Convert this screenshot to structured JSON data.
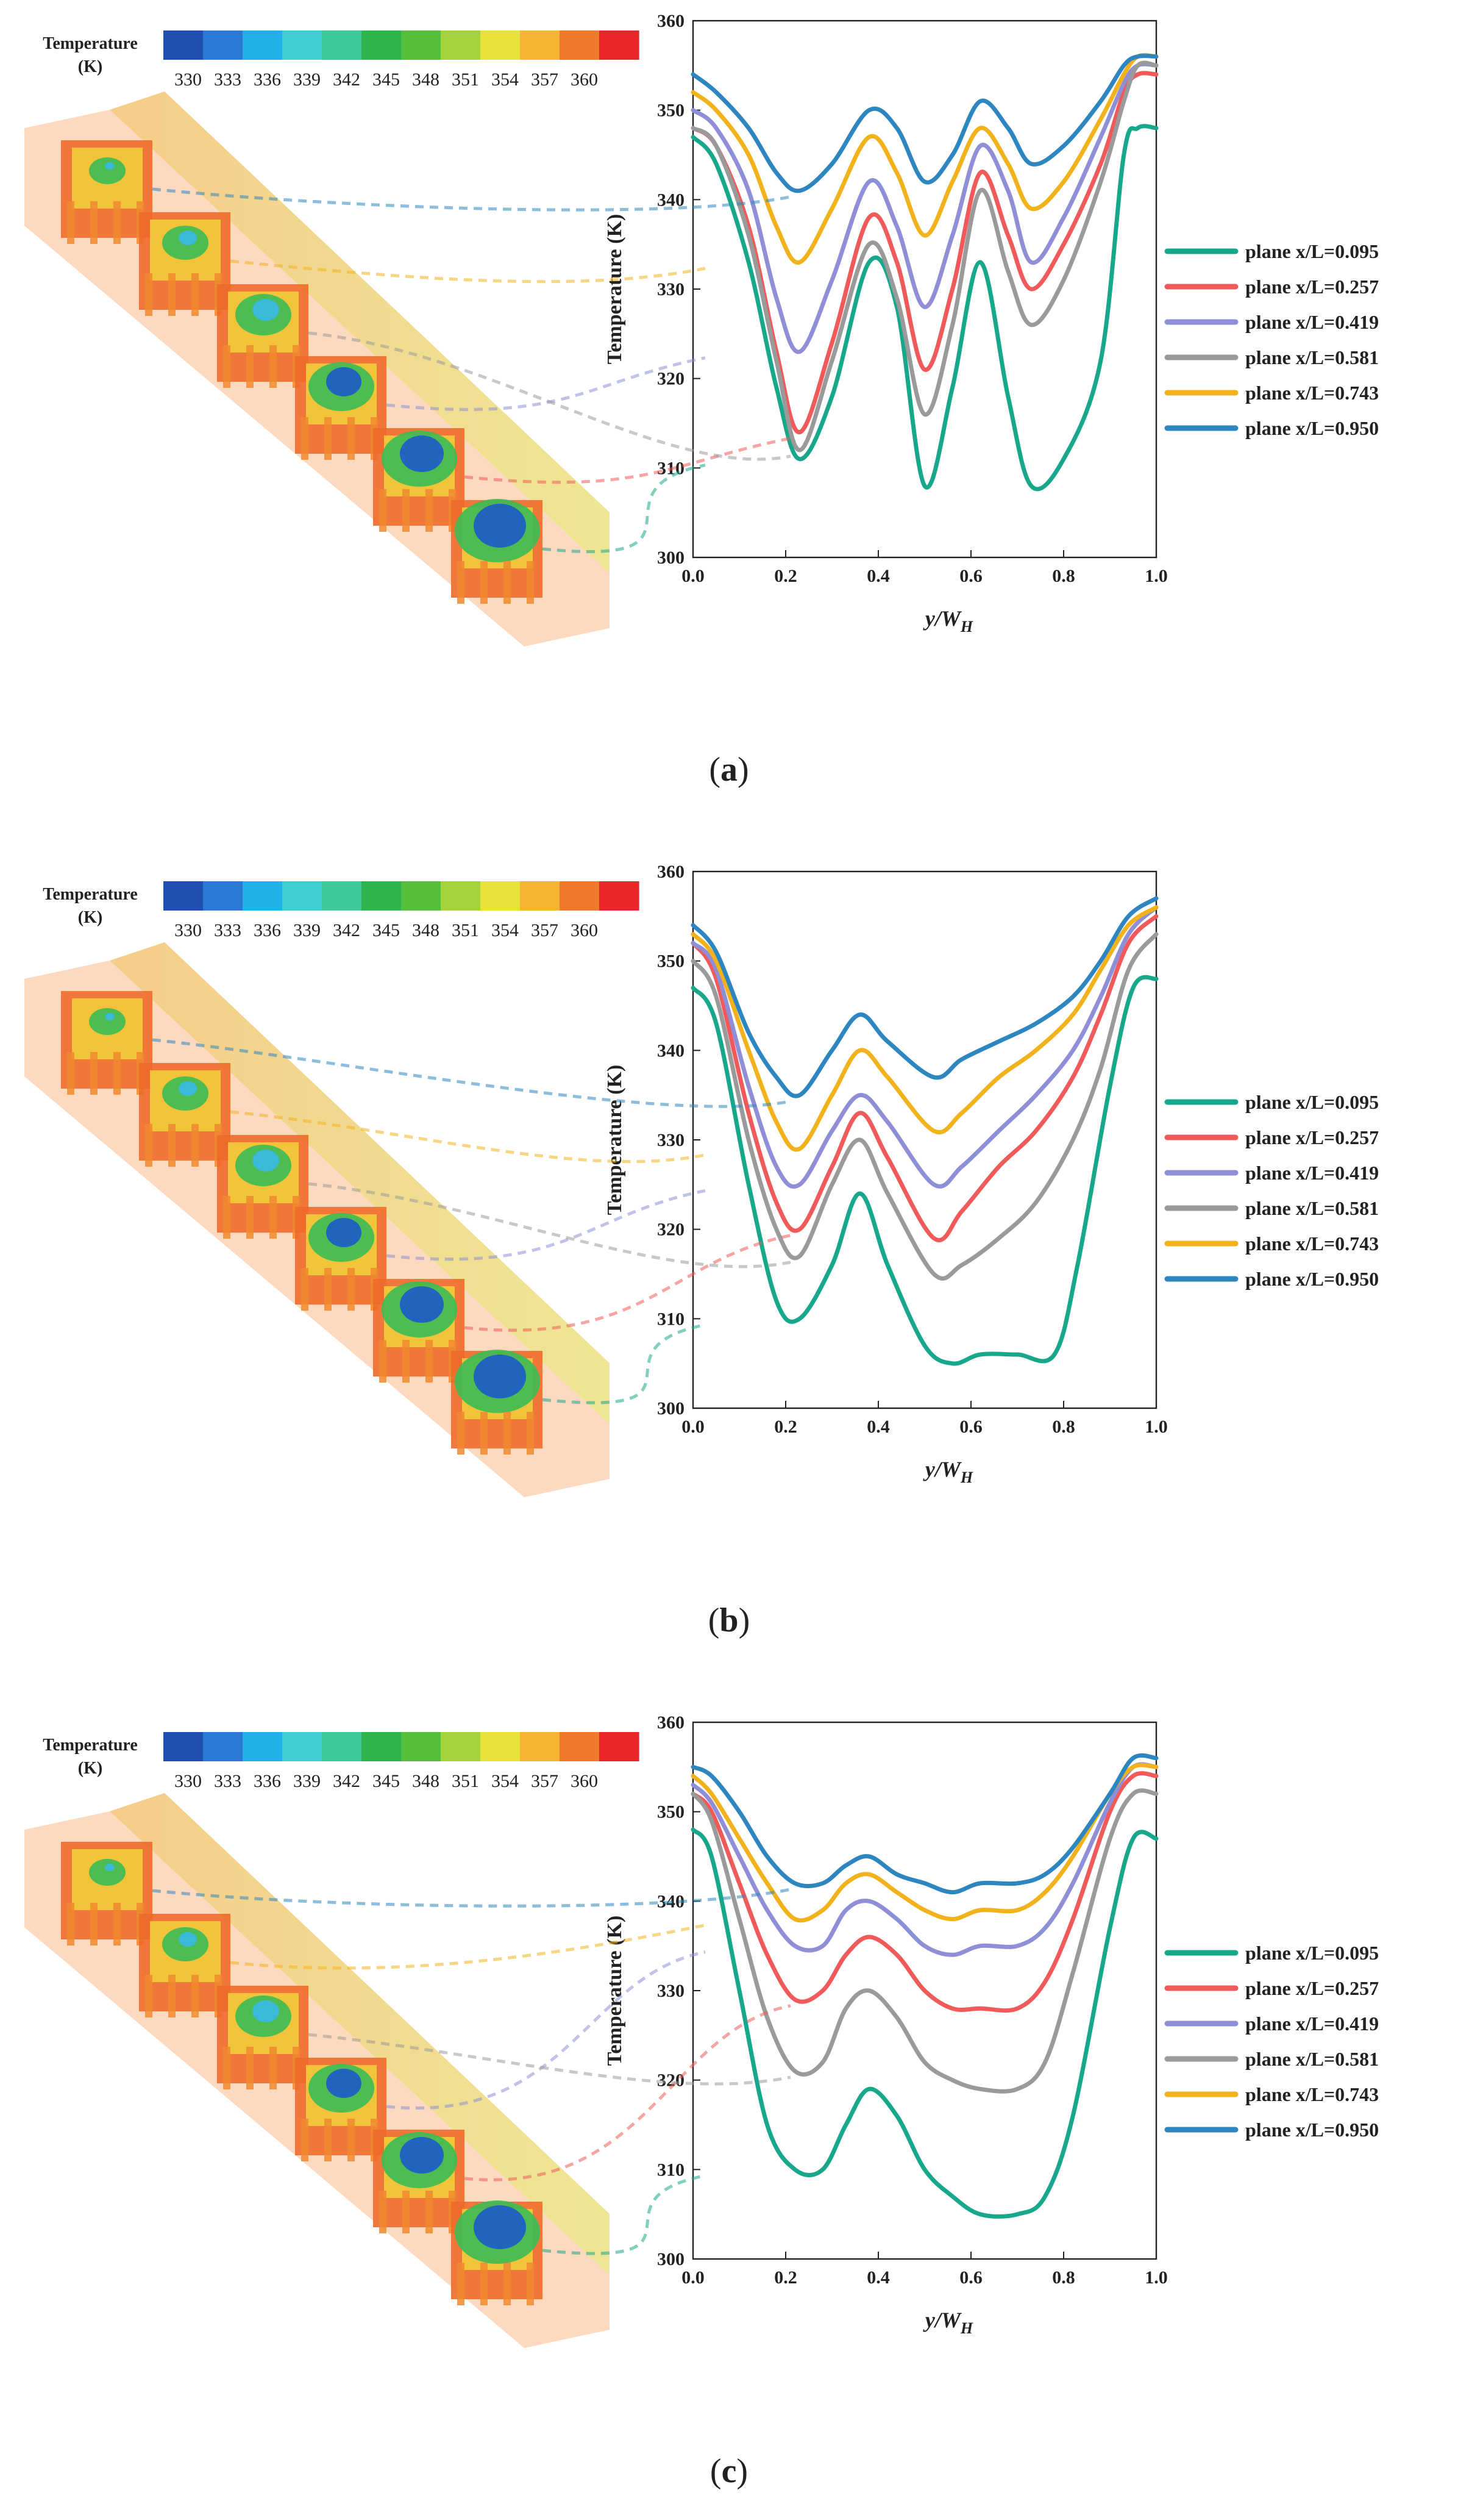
{
  "figure": {
    "panels": [
      {
        "caption_open": "(",
        "caption_letter": "a",
        "caption_close": ")"
      },
      {
        "caption_open": "(",
        "caption_letter": "b",
        "caption_close": ")"
      },
      {
        "caption_open": "(",
        "caption_letter": "c",
        "caption_close": ")"
      }
    ]
  },
  "colorbar": {
    "title_line1": "Temperature",
    "title_line2": "(K)",
    "ticks": [
      "330",
      "333",
      "336",
      "339",
      "342",
      "345",
      "348",
      "351",
      "354",
      "357",
      "360"
    ],
    "colors": [
      "#1f4fb0",
      "#2b78d6",
      "#22b0e8",
      "#3ecfd0",
      "#3fc99a",
      "#2db54b",
      "#54bf3a",
      "#a3d23a",
      "#e6e23a",
      "#f5b533",
      "#f07a2c",
      "#e8262a"
    ]
  },
  "series_colors": {
    "plane x/L=0.095": "#17a88c",
    "plane x/L=0.257": "#f05a5a",
    "plane x/L=0.419": "#8e8fd6",
    "plane x/L=0.581": "#9a9a9a",
    "plane x/L=0.743": "#f2b21c",
    "plane x/L=0.950": "#2e86c1"
  },
  "chart_data": [
    {
      "type": "line",
      "panel": "a",
      "xlabel": "y/W_H",
      "ylabel": "Temperature (K)",
      "xlim": [
        0,
        1
      ],
      "ylim": [
        300,
        360
      ],
      "xticks": [
        "0.0",
        "0.2",
        "0.4",
        "0.6",
        "0.8",
        "1.0"
      ],
      "yticks": [
        "300",
        "310",
        "320",
        "330",
        "340",
        "350",
        "360"
      ],
      "legend": [
        "plane x/L=0.095",
        "plane x/L=0.257",
        "plane x/L=0.419",
        "plane x/L=0.581",
        "plane x/L=0.743",
        "plane x/L=0.950"
      ],
      "series": [
        {
          "name": "plane x/L=0.095",
          "x": [
            0,
            0.05,
            0.12,
            0.18,
            0.23,
            0.3,
            0.38,
            0.44,
            0.5,
            0.56,
            0.62,
            0.68,
            0.73,
            0.8,
            0.88,
            0.93,
            0.96,
            1.0
          ],
          "y": [
            347,
            344,
            333,
            319,
            311,
            318,
            333,
            328,
            308,
            319,
            333,
            318,
            308,
            311,
            322,
            345,
            348,
            348
          ]
        },
        {
          "name": "plane x/L=0.257",
          "x": [
            0,
            0.05,
            0.12,
            0.18,
            0.23,
            0.3,
            0.38,
            0.44,
            0.5,
            0.56,
            0.62,
            0.68,
            0.73,
            0.8,
            0.88,
            0.93,
            0.96,
            1.0
          ],
          "y": [
            348,
            346,
            337,
            323,
            314,
            324,
            338,
            333,
            321,
            330,
            343,
            336,
            330,
            335,
            344,
            352,
            354,
            354
          ]
        },
        {
          "name": "plane x/L=0.419",
          "x": [
            0,
            0.05,
            0.12,
            0.18,
            0.23,
            0.3,
            0.38,
            0.44,
            0.5,
            0.56,
            0.62,
            0.68,
            0.73,
            0.8,
            0.88,
            0.93,
            0.96,
            1.0
          ],
          "y": [
            350,
            348,
            341,
            329,
            323,
            331,
            342,
            337,
            328,
            336,
            346,
            341,
            333,
            338,
            347,
            353,
            355,
            355
          ]
        },
        {
          "name": "plane x/L=0.581",
          "x": [
            0,
            0.05,
            0.12,
            0.18,
            0.23,
            0.3,
            0.38,
            0.44,
            0.5,
            0.56,
            0.62,
            0.68,
            0.73,
            0.8,
            0.88,
            0.93,
            0.96,
            1.0
          ],
          "y": [
            348,
            346,
            336,
            322,
            312,
            322,
            335,
            329,
            316,
            326,
            341,
            332,
            326,
            331,
            342,
            351,
            355,
            355
          ]
        },
        {
          "name": "plane x/L=0.743",
          "x": [
            0,
            0.05,
            0.12,
            0.18,
            0.23,
            0.3,
            0.38,
            0.44,
            0.5,
            0.56,
            0.62,
            0.68,
            0.73,
            0.8,
            0.88,
            0.93,
            0.96,
            1.0
          ],
          "y": [
            352,
            350,
            345,
            337,
            333,
            339,
            347,
            343,
            336,
            342,
            348,
            344,
            339,
            342,
            349,
            354,
            356,
            356
          ]
        },
        {
          "name": "plane x/L=0.950",
          "x": [
            0,
            0.05,
            0.12,
            0.18,
            0.23,
            0.3,
            0.38,
            0.44,
            0.5,
            0.56,
            0.62,
            0.68,
            0.73,
            0.8,
            0.88,
            0.93,
            0.96,
            1.0
          ],
          "y": [
            354,
            352,
            348,
            343,
            341,
            344,
            350,
            348,
            342,
            345,
            351,
            348,
            344,
            346,
            351,
            355,
            356,
            356
          ]
        }
      ]
    },
    {
      "type": "line",
      "panel": "b",
      "xlabel": "y/W_H",
      "ylabel": "Temperature (K)",
      "xlim": [
        0,
        1
      ],
      "ylim": [
        300,
        360
      ],
      "xticks": [
        "0.0",
        "0.2",
        "0.4",
        "0.6",
        "0.8",
        "1.0"
      ],
      "yticks": [
        "300",
        "310",
        "320",
        "330",
        "340",
        "350",
        "360"
      ],
      "legend": [
        "plane x/L=0.095",
        "plane x/L=0.257",
        "plane x/L=0.419",
        "plane x/L=0.581",
        "plane x/L=0.743",
        "plane x/L=0.950"
      ],
      "series": [
        {
          "name": "plane x/L=0.095",
          "x": [
            0,
            0.05,
            0.12,
            0.18,
            0.23,
            0.3,
            0.36,
            0.42,
            0.5,
            0.56,
            0.62,
            0.7,
            0.78,
            0.83,
            0.9,
            0.95,
            1.0
          ],
          "y": [
            347,
            343,
            325,
            312,
            310,
            316,
            324,
            316,
            307,
            305,
            306,
            306,
            306,
            316,
            336,
            347,
            348
          ]
        },
        {
          "name": "plane x/L=0.257",
          "x": [
            0,
            0.05,
            0.12,
            0.18,
            0.23,
            0.3,
            0.36,
            0.42,
            0.52,
            0.58,
            0.66,
            0.74,
            0.82,
            0.88,
            0.94,
            1.0
          ],
          "y": [
            352,
            348,
            333,
            323,
            320,
            327,
            333,
            328,
            319,
            322,
            327,
            331,
            337,
            344,
            352,
            355
          ]
        },
        {
          "name": "plane x/L=0.419",
          "x": [
            0,
            0.05,
            0.12,
            0.18,
            0.23,
            0.3,
            0.36,
            0.42,
            0.52,
            0.58,
            0.66,
            0.74,
            0.82,
            0.88,
            0.94,
            1.0
          ],
          "y": [
            352,
            349,
            336,
            327,
            325,
            331,
            335,
            332,
            325,
            327,
            331,
            335,
            340,
            346,
            353,
            356
          ]
        },
        {
          "name": "plane x/L=0.581",
          "x": [
            0,
            0.05,
            0.12,
            0.18,
            0.23,
            0.3,
            0.36,
            0.42,
            0.52,
            0.58,
            0.66,
            0.74,
            0.82,
            0.88,
            0.94,
            1.0
          ],
          "y": [
            350,
            346,
            330,
            320,
            317,
            325,
            330,
            324,
            315,
            316,
            319,
            323,
            330,
            338,
            349,
            353
          ]
        },
        {
          "name": "plane x/L=0.743",
          "x": [
            0,
            0.05,
            0.12,
            0.18,
            0.23,
            0.3,
            0.36,
            0.42,
            0.52,
            0.58,
            0.66,
            0.74,
            0.82,
            0.88,
            0.94,
            1.0
          ],
          "y": [
            353,
            350,
            340,
            332,
            329,
            335,
            340,
            337,
            331,
            333,
            337,
            340,
            344,
            349,
            354,
            356
          ]
        },
        {
          "name": "plane x/L=0.950",
          "x": [
            0,
            0.05,
            0.12,
            0.18,
            0.23,
            0.3,
            0.36,
            0.42,
            0.52,
            0.58,
            0.66,
            0.74,
            0.82,
            0.88,
            0.94,
            1.0
          ],
          "y": [
            354,
            351,
            342,
            337,
            335,
            340,
            344,
            341,
            337,
            339,
            341,
            343,
            346,
            350,
            355,
            357
          ]
        }
      ]
    },
    {
      "type": "line",
      "panel": "c",
      "xlabel": "y/W_H",
      "ylabel": "Temperature (K)",
      "xlim": [
        0,
        1
      ],
      "ylim": [
        300,
        360
      ],
      "xticks": [
        "0.0",
        "0.2",
        "0.4",
        "0.6",
        "0.8",
        "1.0"
      ],
      "yticks": [
        "300",
        "310",
        "320",
        "330",
        "340",
        "350",
        "360"
      ],
      "legend": [
        "plane x/L=0.095",
        "plane x/L=0.257",
        "plane x/L=0.419",
        "plane x/L=0.581",
        "plane x/L=0.743",
        "plane x/L=0.950"
      ],
      "series": [
        {
          "name": "plane x/L=0.095",
          "x": [
            0,
            0.04,
            0.1,
            0.16,
            0.22,
            0.28,
            0.33,
            0.38,
            0.44,
            0.5,
            0.56,
            0.62,
            0.7,
            0.76,
            0.82,
            0.9,
            0.95,
            1.0
          ],
          "y": [
            348,
            345,
            330,
            315,
            310,
            310,
            315,
            319,
            316,
            310,
            307,
            305,
            305,
            307,
            316,
            337,
            347,
            347
          ]
        },
        {
          "name": "plane x/L=0.257",
          "x": [
            0,
            0.04,
            0.1,
            0.16,
            0.22,
            0.28,
            0.33,
            0.38,
            0.44,
            0.5,
            0.56,
            0.62,
            0.7,
            0.76,
            0.82,
            0.9,
            0.95,
            1.0
          ],
          "y": [
            352,
            350,
            342,
            334,
            329,
            330,
            334,
            336,
            334,
            330,
            328,
            328,
            328,
            331,
            338,
            350,
            354,
            354
          ]
        },
        {
          "name": "plane x/L=0.419",
          "x": [
            0,
            0.04,
            0.1,
            0.16,
            0.22,
            0.28,
            0.33,
            0.38,
            0.44,
            0.5,
            0.56,
            0.62,
            0.7,
            0.76,
            0.82,
            0.9,
            0.95,
            1.0
          ],
          "y": [
            353,
            351,
            345,
            339,
            335,
            335,
            339,
            340,
            338,
            335,
            334,
            335,
            335,
            337,
            342,
            351,
            355,
            355
          ]
        },
        {
          "name": "plane x/L=0.581",
          "x": [
            0,
            0.04,
            0.1,
            0.16,
            0.22,
            0.28,
            0.33,
            0.38,
            0.44,
            0.5,
            0.56,
            0.62,
            0.7,
            0.76,
            0.82,
            0.9,
            0.95,
            1.0
          ],
          "y": [
            352,
            349,
            338,
            327,
            321,
            322,
            328,
            330,
            327,
            322,
            320,
            319,
            319,
            322,
            332,
            347,
            352,
            352
          ]
        },
        {
          "name": "plane x/L=0.743",
          "x": [
            0,
            0.04,
            0.1,
            0.16,
            0.22,
            0.28,
            0.33,
            0.38,
            0.44,
            0.5,
            0.56,
            0.62,
            0.7,
            0.76,
            0.82,
            0.9,
            0.95,
            1.0
          ],
          "y": [
            354,
            352,
            347,
            342,
            338,
            339,
            342,
            343,
            341,
            339,
            338,
            339,
            339,
            341,
            345,
            352,
            355,
            355
          ]
        },
        {
          "name": "plane x/L=0.950",
          "x": [
            0,
            0.04,
            0.1,
            0.16,
            0.22,
            0.28,
            0.33,
            0.38,
            0.44,
            0.5,
            0.56,
            0.62,
            0.7,
            0.76,
            0.82,
            0.9,
            0.95,
            1.0
          ],
          "y": [
            355,
            354,
            350,
            345,
            342,
            342,
            344,
            345,
            343,
            342,
            341,
            342,
            342,
            343,
            346,
            352,
            356,
            356
          ]
        }
      ]
    }
  ]
}
